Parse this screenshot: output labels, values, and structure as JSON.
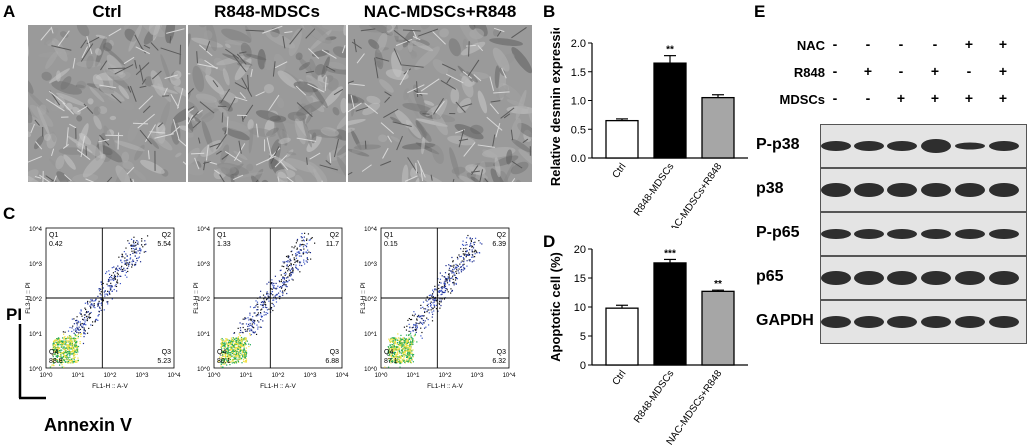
{
  "panels": {
    "A": "A",
    "B": "B",
    "C": "C",
    "D": "D",
    "E": "E"
  },
  "panel_a": {
    "titles": [
      "Ctrl",
      "R848-MDSCs",
      "NAC-MDSCs+R848"
    ]
  },
  "chart_data": [
    {
      "type": "bar",
      "panel": "B",
      "categories": [
        "Ctrl",
        "R848-MDSCs",
        "NAC-MDSCs+R848"
      ],
      "values": [
        0.65,
        1.65,
        1.05
      ],
      "errors": [
        0.03,
        0.13,
        0.05
      ],
      "significance": [
        "",
        "**",
        ""
      ],
      "bar_colors": [
        "#ffffff",
        "#000000",
        "#a6a6a6"
      ],
      "ylabel": "Relative desmin expression",
      "ylim": [
        0,
        2.0
      ],
      "yticks": [
        "0.0",
        "0.5",
        "1.0",
        "1.5",
        "2.0"
      ]
    },
    {
      "type": "bar",
      "panel": "D",
      "categories": [
        "Ctrl",
        "R848-MDSCs",
        "NAC-MDSCs+R848"
      ],
      "values": [
        9.8,
        17.6,
        12.7
      ],
      "errors": [
        0.5,
        0.6,
        0.2
      ],
      "significance": [
        "",
        "***",
        "**"
      ],
      "bar_colors": [
        "#ffffff",
        "#000000",
        "#a6a6a6"
      ],
      "ylabel": "Apoptotic cell (%)",
      "ylim": [
        0,
        20
      ],
      "yticks": [
        "0",
        "5",
        "10",
        "15",
        "20"
      ]
    }
  ],
  "flow": {
    "ylabel": "PI",
    "xlabel": "Annexin V",
    "axis_x_label": "FL1-H :: A-V",
    "axis_y_label": "FL3-H :: PI",
    "plots": [
      {
        "q1": "Q1",
        "q1v": "0.42",
        "q2": "Q2",
        "q2v": "5.54",
        "q3": "Q3",
        "q3v": "5.23",
        "q4": "Q4",
        "q4v": "88.8"
      },
      {
        "q1": "Q1",
        "q1v": "1.33",
        "q2": "Q2",
        "q2v": "11.7",
        "q3": "Q3",
        "q3v": "6.88",
        "q4": "Q4",
        "q4v": "80.1"
      },
      {
        "q1": "Q1",
        "q1v": "0.15",
        "q2": "Q2",
        "q2v": "6.39",
        "q3": "Q3",
        "q3v": "6.32",
        "q4": "Q4",
        "q4v": "87.1"
      }
    ],
    "ticks": [
      "10^0",
      "10^1",
      "10^2",
      "10^3",
      "10^4"
    ]
  },
  "western": {
    "conditions": [
      {
        "name": "NAC",
        "signs": [
          "-",
          "-",
          "-",
          "-",
          "+",
          "+"
        ]
      },
      {
        "name": "R848",
        "signs": [
          "-",
          "+",
          "-",
          "+",
          "-",
          "+"
        ]
      },
      {
        "name": "MDSCs",
        "signs": [
          "-",
          "-",
          "+",
          "+",
          "+",
          "+"
        ]
      }
    ],
    "proteins": [
      "P-p38",
      "p38",
      "P-p65",
      "p65",
      "GAPDH"
    ]
  }
}
